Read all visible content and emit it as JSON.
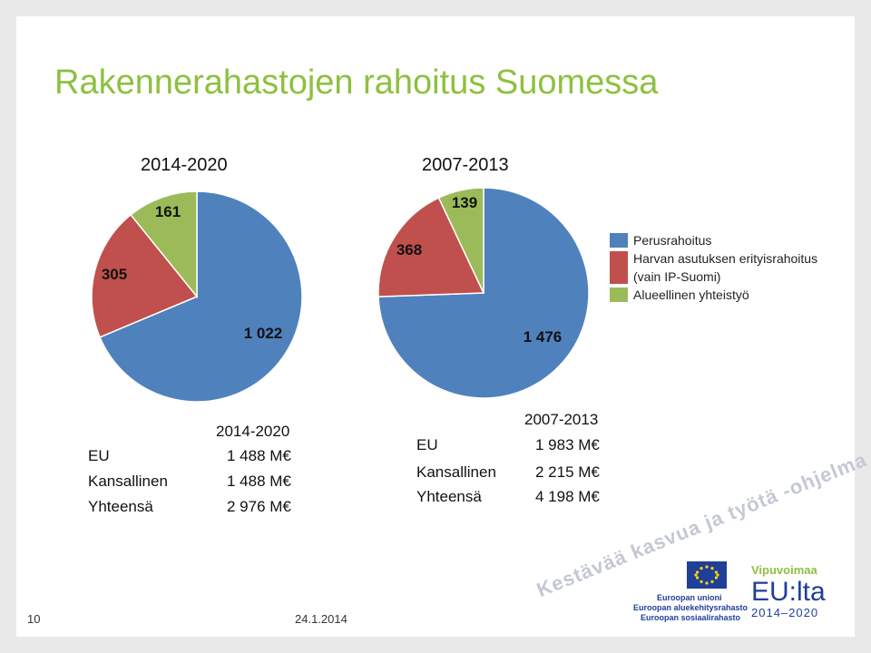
{
  "title": "Rakennerahastojen rahoitus Suomessa",
  "chart_data": [
    {
      "type": "pie",
      "title": "2014-2020",
      "categories": [
        "Perusrahoitus",
        "Harvan asutuksen erityisrahoitus (vain IP-Suomi)",
        "Alueellinen yhteistyö"
      ],
      "values": [
        1022,
        305,
        161
      ],
      "labels": [
        "1 022",
        "305",
        "161"
      ],
      "colors": [
        "#4f81bd",
        "#c0504d",
        "#9bbb59"
      ]
    },
    {
      "type": "pie",
      "title": "2007-2013",
      "categories": [
        "Perusrahoitus",
        "Harvan asutuksen erityisrahoitus (vain IP-Suomi)",
        "Alueellinen yhteistyö"
      ],
      "values": [
        1476,
        368,
        139
      ],
      "labels": [
        "1 476",
        "368",
        "139"
      ],
      "colors": [
        "#4f81bd",
        "#c0504d",
        "#9bbb59"
      ]
    }
  ],
  "legend": [
    {
      "label": "Perusrahoitus",
      "color": "#4f81bd"
    },
    {
      "label": "Harvan asutuksen erityisrahoitus",
      "label2": "(vain IP-Suomi)",
      "color": "#c0504d"
    },
    {
      "label": "Alueellinen yhteistyö",
      "color": "#9bbb59"
    }
  ],
  "summary_2014": {
    "header": "2014-2020",
    "rows": [
      {
        "label": "EU",
        "value": "1 488 M€"
      },
      {
        "label": "Kansallinen",
        "value": "1 488 M€"
      },
      {
        "label": "Yhteensä",
        "value": "2 976 M€"
      }
    ]
  },
  "summary_2007": {
    "header": "2007-2013",
    "rows": [
      {
        "label": "EU",
        "value": "1 983 M€"
      },
      {
        "label": "Kansallinen",
        "value": "2 215 M€"
      },
      {
        "label": "Yhteensä",
        "value": "4 198 M€"
      }
    ]
  },
  "footer": {
    "page": "10",
    "date": "24.1.2014"
  },
  "watermark": "Kestävää kasvua ja työtä -ohjelma",
  "logos": {
    "eu_lines": [
      "Euroopan unioni",
      "Euroopan aluekehitysrahasto",
      "Euroopan sosiaalirahasto"
    ],
    "vipuvoimaa": "Vipuvoimaa",
    "eu_lta": "EU:lta",
    "years": "2014–2020"
  }
}
